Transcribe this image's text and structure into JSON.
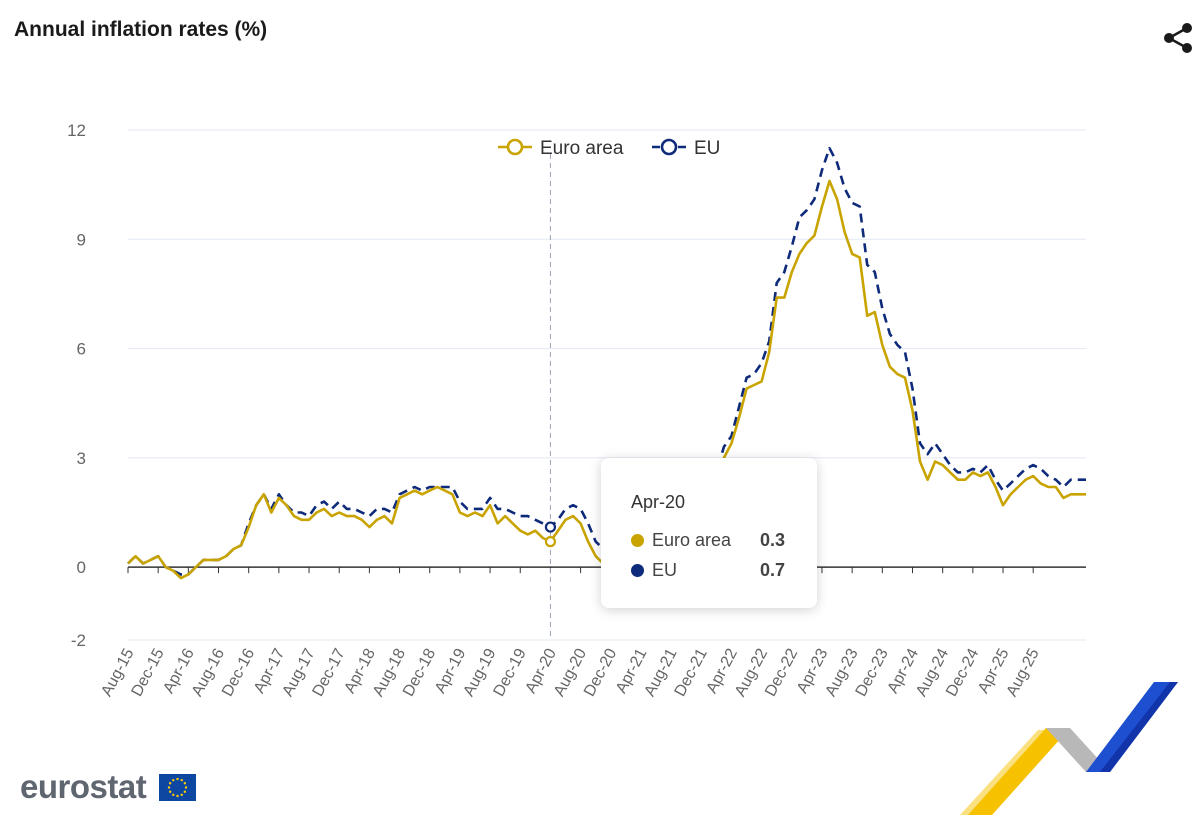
{
  "header": {
    "title": "Annual inflation rates (%)",
    "share_icon": "share-icon"
  },
  "colors": {
    "euro_area": "#c9a400",
    "eu": "#0e2a7a",
    "grid": "#e3e8f2"
  },
  "tooltip": {
    "date": "Apr-20",
    "rows": [
      {
        "name": "Euro area",
        "value": "0.3",
        "color": "#c9a400"
      },
      {
        "name": "EU",
        "value": "0.7",
        "color": "#0e2a7a"
      }
    ]
  },
  "branding": {
    "logo_text": "eurostat",
    "flag_icon": "eu-flag-icon"
  },
  "chart_data": {
    "type": "line",
    "title": "Annual inflation rates (%)",
    "xlabel": "",
    "ylabel": "",
    "ylim": [
      -2,
      12
    ],
    "yticks": [
      "-2",
      "0",
      "3",
      "6",
      "9",
      "12"
    ],
    "ytick_values": [
      -2,
      0,
      3,
      6,
      9,
      12
    ],
    "grid": true,
    "legend_position": "top",
    "x_start": "Aug-15",
    "xtick_labels": [
      "Aug-15",
      "Dec-15",
      "Apr-16",
      "Aug-16",
      "Dec-16",
      "Apr-17",
      "Aug-17",
      "Dec-17",
      "Apr-18",
      "Aug-18",
      "Dec-18",
      "Apr-19",
      "Aug-19",
      "Dec-19",
      "Apr-20",
      "Aug-20",
      "Dec-20",
      "Apr-21",
      "Aug-21",
      "Dec-21",
      "Apr-22",
      "Aug-22",
      "Dec-22",
      "Apr-23",
      "Aug-23",
      "Dec-23",
      "Apr-24",
      "Aug-24",
      "Dec-24",
      "Apr-25",
      "Aug-25"
    ],
    "highlight": "Apr-20",
    "series": [
      {
        "name": "Euro area",
        "style": "solid",
        "values": [
          0.1,
          0.3,
          0.1,
          0.2,
          0.3,
          0.0,
          -0.1,
          -0.3,
          -0.2,
          0.0,
          0.2,
          0.2,
          0.2,
          0.3,
          0.5,
          0.6,
          1.1,
          1.7,
          2.0,
          1.5,
          1.9,
          1.7,
          1.4,
          1.3,
          1.3,
          1.5,
          1.6,
          1.4,
          1.5,
          1.4,
          1.4,
          1.3,
          1.1,
          1.3,
          1.4,
          1.2,
          1.9,
          2.0,
          2.1,
          2.0,
          2.1,
          2.2,
          2.1,
          2.0,
          1.5,
          1.4,
          1.5,
          1.4,
          1.7,
          1.2,
          1.4,
          1.2,
          1.0,
          0.9,
          1.0,
          0.8,
          0.7,
          1.0,
          1.3,
          1.4,
          1.2,
          0.7,
          0.3,
          0.1,
          0.3,
          0.4,
          -0.2,
          -0.3,
          -0.3,
          -0.3,
          -0.3,
          0.9,
          0.9,
          1.3,
          1.6,
          2.0,
          1.9,
          1.9,
          2.2,
          3.0,
          3.4,
          4.1,
          4.9,
          5.0,
          5.1,
          5.9,
          7.4,
          7.4,
          8.1,
          8.6,
          8.9,
          9.1,
          9.9,
          10.6,
          10.1,
          9.2,
          8.6,
          8.5,
          6.9,
          7.0,
          6.1,
          5.5,
          5.3,
          5.2,
          4.3,
          2.9,
          2.4,
          2.9,
          2.8,
          2.6,
          2.4,
          2.4,
          2.6,
          2.5,
          2.6,
          2.2,
          1.7,
          2.0,
          2.2,
          2.4,
          2.5,
          2.3,
          2.2,
          2.2,
          1.9,
          2.0,
          2.0,
          2.0
        ],
        "color": "#c9a400"
      },
      {
        "name": "EU",
        "style": "dashed",
        "values": [
          0.1,
          0.3,
          0.1,
          0.2,
          0.3,
          0.0,
          -0.1,
          -0.2,
          -0.2,
          0.0,
          0.2,
          0.2,
          0.2,
          0.3,
          0.5,
          0.6,
          1.2,
          1.7,
          2.0,
          1.6,
          2.0,
          1.7,
          1.5,
          1.5,
          1.4,
          1.7,
          1.8,
          1.6,
          1.8,
          1.6,
          1.6,
          1.5,
          1.4,
          1.6,
          1.6,
          1.5,
          2.0,
          2.1,
          2.2,
          2.1,
          2.2,
          2.2,
          2.2,
          2.2,
          1.8,
          1.6,
          1.6,
          1.6,
          1.9,
          1.6,
          1.6,
          1.5,
          1.4,
          1.4,
          1.3,
          1.2,
          1.1,
          1.3,
          1.6,
          1.7,
          1.6,
          1.2,
          0.7,
          0.5,
          0.7,
          0.9,
          0.3,
          0.3,
          0.3,
          0.2,
          0.2,
          1.2,
          1.3,
          1.7,
          2.1,
          2.5,
          2.3,
          2.2,
          2.6,
          3.3,
          3.6,
          4.4,
          5.2,
          5.3,
          5.6,
          6.2,
          7.8,
          8.1,
          8.8,
          9.6,
          9.8,
          10.1,
          10.9,
          11.5,
          11.1,
          10.4,
          10.0,
          9.9,
          8.3,
          8.1,
          7.1,
          6.4,
          6.1,
          5.9,
          4.9,
          3.4,
          3.1,
          3.4,
          3.1,
          2.8,
          2.6,
          2.6,
          2.7,
          2.6,
          2.8,
          2.4,
          2.1,
          2.3,
          2.5,
          2.7,
          2.8,
          2.7,
          2.5,
          2.4,
          2.2,
          2.4,
          2.4,
          2.4
        ],
        "color": "#0e2a7a"
      }
    ]
  }
}
